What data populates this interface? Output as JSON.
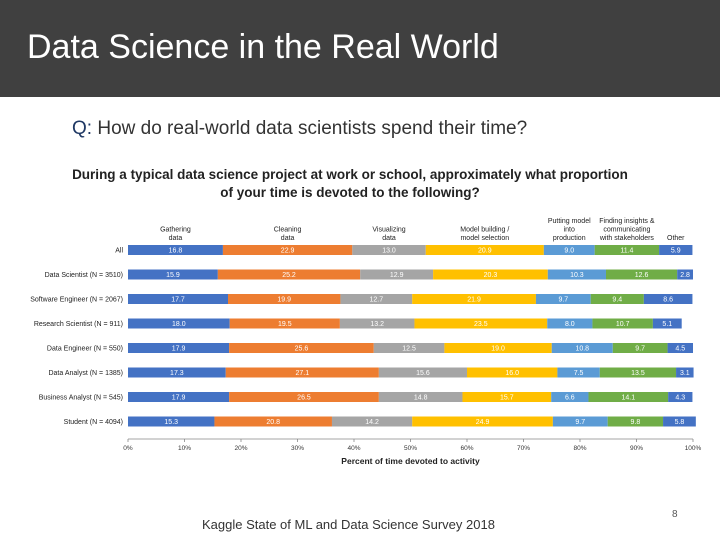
{
  "slide": {
    "title": "Data Science in the Real World",
    "question_prefix": "Q:",
    "question": "How do real-world data scientists spend their time?",
    "footer": "Kaggle State of ML and Data Science Survey 2018",
    "page_number": "8"
  },
  "chart_data": {
    "type": "bar",
    "orientation": "horizontal",
    "stacked": true,
    "title_line1": "During a typical data science project at work or school, approximately what proportion",
    "title_line2": "of your time is devoted to the following?",
    "xlabel": "Percent of time devoted to activity",
    "xlim": [
      0,
      100
    ],
    "xticks": [
      "0%",
      "10%",
      "20%",
      "30%",
      "40%",
      "50%",
      "60%",
      "70%",
      "80%",
      "90%",
      "100%"
    ],
    "categories": [
      "All",
      "Data Scientist (N = 3510)",
      "Software Engineer (N = 2067)",
      "Research Scientist (N = 911)",
      "Data Engineer (N = 550)",
      "Data Analyst (N = 1385)",
      "Business Analyst (N = 545)",
      "Student (N = 4094)"
    ],
    "series": [
      {
        "name_lines": [
          "Gathering",
          "data"
        ],
        "color": "#4472c4",
        "values": [
          16.8,
          15.9,
          17.7,
          18.0,
          17.9,
          17.3,
          17.9,
          15.3
        ]
      },
      {
        "name_lines": [
          "Cleaning",
          "data"
        ],
        "color": "#ed7d31",
        "values": [
          22.9,
          25.2,
          19.9,
          19.5,
          25.6,
          27.1,
          26.5,
          20.8
        ]
      },
      {
        "name_lines": [
          "Visualizing",
          "data"
        ],
        "color": "#a5a5a5",
        "values": [
          13.0,
          12.9,
          12.7,
          13.2,
          12.5,
          15.6,
          14.8,
          14.2
        ]
      },
      {
        "name_lines": [
          "Model building /",
          "model selection"
        ],
        "color": "#ffc000",
        "values": [
          20.9,
          20.3,
          21.9,
          23.5,
          19.0,
          16.0,
          15.7,
          24.9
        ]
      },
      {
        "name_lines": [
          "Putting model",
          "into",
          "production"
        ],
        "color": "#5b9bd5",
        "values": [
          9.0,
          10.3,
          9.7,
          8.0,
          10.8,
          7.5,
          6.6,
          9.7
        ]
      },
      {
        "name_lines": [
          "Finding insights &",
          "communicating",
          "with stakeholders"
        ],
        "color": "#70ad47",
        "values": [
          11.4,
          12.6,
          9.4,
          10.7,
          9.7,
          13.5,
          14.1,
          9.8
        ]
      },
      {
        "name_lines": [
          "Other"
        ],
        "color": "#4472c4",
        "values": [
          5.9,
          2.8,
          8.6,
          5.1,
          4.5,
          3.1,
          4.3,
          5.8
        ]
      }
    ]
  }
}
